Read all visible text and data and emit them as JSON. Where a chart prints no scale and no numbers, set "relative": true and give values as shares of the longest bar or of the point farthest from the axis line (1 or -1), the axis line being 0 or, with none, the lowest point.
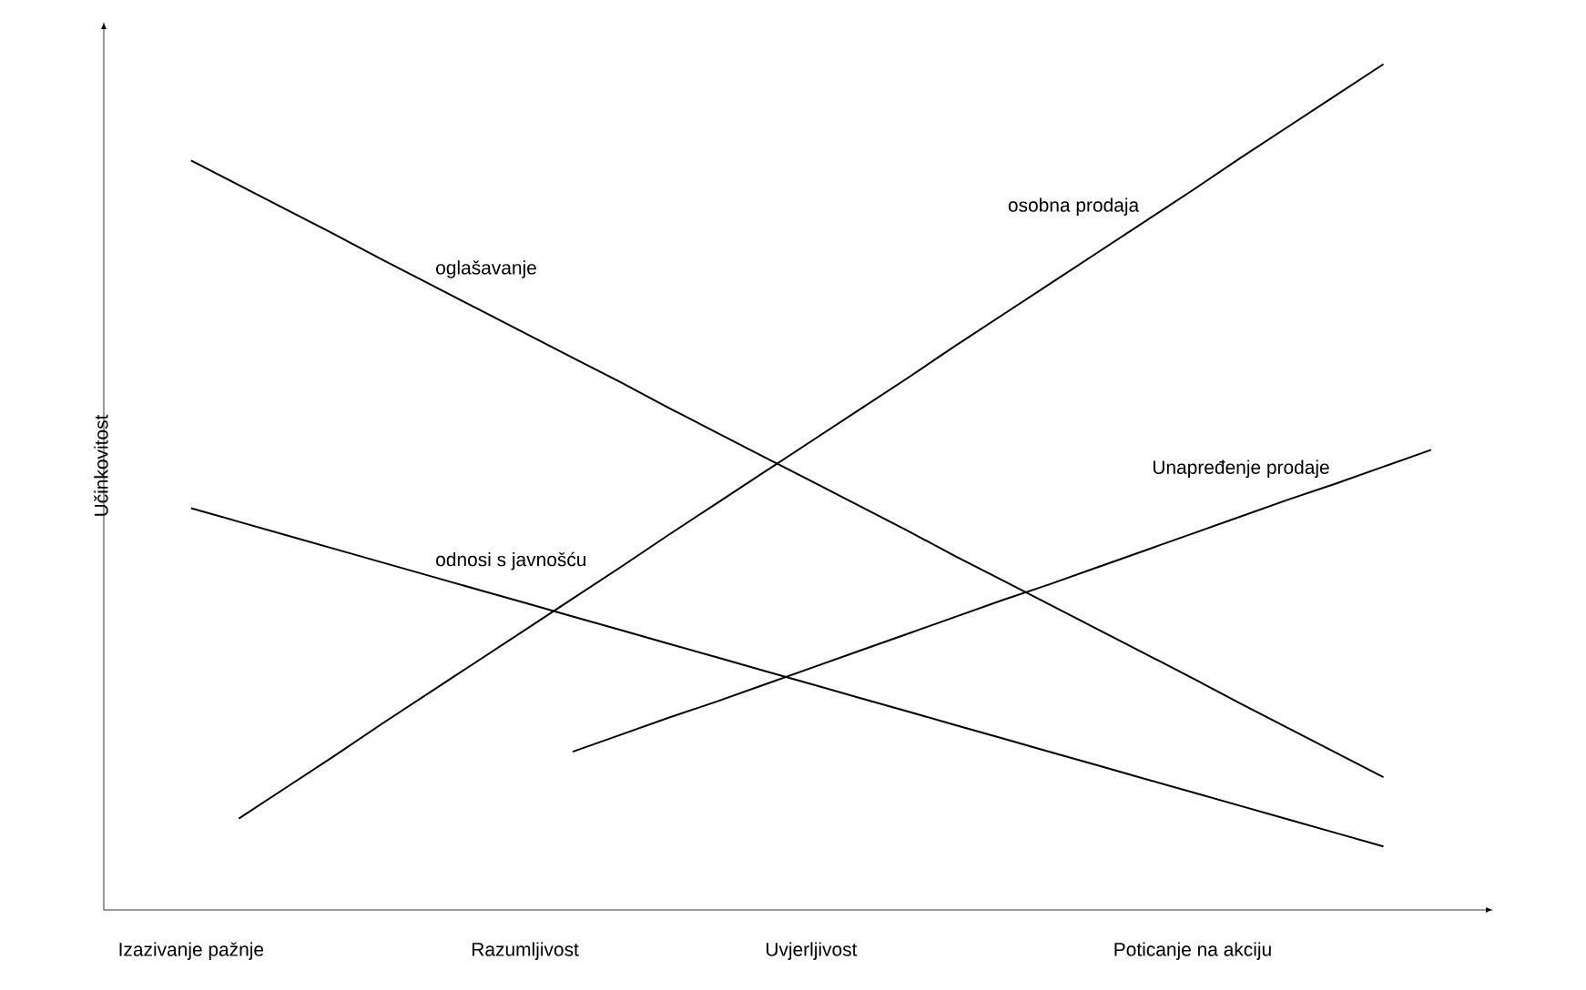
{
  "chart_data": {
    "type": "line",
    "relative": true,
    "ylabel": "Učinkovitost",
    "categories": [
      "Izazivanje pažnje",
      null,
      null,
      null,
      null,
      null,
      null,
      "Razumljivost",
      null,
      null,
      null,
      null,
      null,
      "Uvjerljivost",
      null,
      null,
      null,
      null,
      null,
      null,
      null,
      "Poticanje na akciju",
      null,
      null,
      null,
      null,
      null
    ],
    "series": [
      {
        "name": "oglašavanje",
        "color": "#000000",
        "values": [
          0.886,
          0.857,
          0.828,
          0.799,
          0.769,
          0.74,
          0.711,
          0.682,
          0.653,
          0.624,
          0.594,
          0.565,
          0.536,
          0.507,
          0.478,
          0.449,
          0.419,
          0.39,
          0.361,
          0.332,
          0.303,
          0.274,
          0.244,
          0.215,
          0.186,
          0.157,
          null
        ]
      },
      {
        "name": "osobna prodaja",
        "color": "#000000",
        "values": [
          null,
          0.108,
          0.145,
          0.182,
          0.22,
          0.257,
          0.294,
          0.331,
          0.368,
          0.405,
          0.443,
          0.48,
          0.517,
          0.554,
          0.591,
          0.628,
          0.666,
          0.703,
          0.74,
          0.777,
          0.814,
          0.851,
          0.889,
          0.926,
          0.963,
          1,
          null
        ]
      },
      {
        "name": "odnosi s javnošću",
        "color": "#000000",
        "values": [
          0.475,
          0.459,
          0.443,
          0.427,
          0.411,
          0.395,
          0.379,
          0.363,
          0.347,
          0.331,
          0.315,
          0.299,
          0.283,
          0.267,
          0.251,
          0.235,
          0.219,
          0.203,
          0.187,
          0.171,
          0.155,
          0.139,
          0.123,
          0.107,
          0.091,
          0.075,
          null
        ]
      },
      {
        "name": "Unapređenje prodaje",
        "color": "#000000",
        "values": [
          null,
          null,
          null,
          null,
          null,
          null,
          null,
          null,
          0.187,
          0.207,
          0.227,
          0.246,
          0.266,
          0.286,
          0.306,
          0.326,
          0.346,
          0.366,
          0.385,
          0.405,
          0.425,
          0.445,
          0.465,
          0.485,
          0.504,
          0.524,
          0.544
        ]
      }
    ],
    "line_style": "solid",
    "marker": "none"
  }
}
